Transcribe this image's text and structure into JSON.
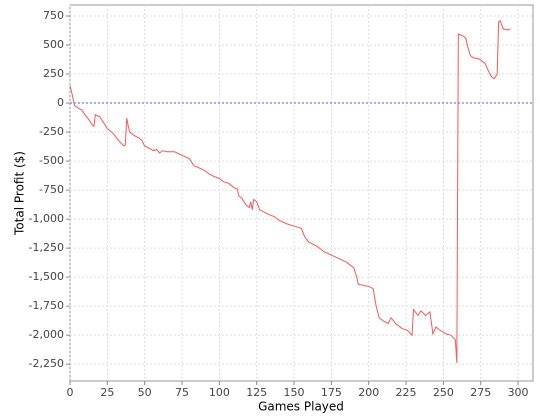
{
  "chart_data": {
    "type": "line",
    "x_label": "Games Played",
    "y_label": "Total Profit ($)",
    "xlim": [
      0,
      310
    ],
    "ylim": [
      -2395,
      845
    ],
    "xticks": [
      0,
      25,
      50,
      75,
      100,
      125,
      150,
      175,
      200,
      225,
      250,
      275,
      300
    ],
    "yticks": [
      750,
      500,
      250,
      0,
      -250,
      -500,
      -750,
      {
        "value": -1000,
        "label": "-1,000"
      },
      {
        "value": -1250,
        "label": "-1,250"
      },
      {
        "value": -1500,
        "label": "-1,500"
      },
      {
        "value": -1750,
        "label": "-1,750"
      },
      {
        "value": -2000,
        "label": "-2,000"
      },
      {
        "value": -2250,
        "label": "-2,250"
      }
    ],
    "grid": true,
    "zero_line": true,
    "series": [
      {
        "color": "#ff5555",
        "x": [
          0,
          1,
          3,
          5,
          8,
          10,
          13,
          15,
          16,
          17,
          20,
          23,
          25,
          28,
          30,
          33,
          36,
          37,
          38,
          39,
          40,
          43,
          46,
          48,
          50,
          53,
          56,
          58,
          60,
          62,
          65,
          70,
          75,
          80,
          83,
          85,
          90,
          93,
          96,
          100,
          103,
          106,
          110,
          112,
          113,
          115,
          118,
          120,
          121,
          122,
          123,
          125,
          127,
          130,
          133,
          137,
          140,
          145,
          150,
          155,
          157,
          160,
          165,
          170,
          175,
          180,
          185,
          190,
          192,
          193,
          196,
          200,
          203,
          205,
          207,
          210,
          213,
          215,
          218,
          222,
          226,
          229,
          230,
          233,
          235,
          238,
          241,
          243,
          245,
          248,
          252,
          255,
          258,
          259,
          260,
          263,
          265,
          266,
          268,
          270,
          274,
          278,
          280,
          282,
          284,
          286,
          287,
          288,
          290,
          293,
          295
        ],
        "values": [
          150,
          100,
          -20,
          -40,
          -60,
          -100,
          -150,
          -190,
          -200,
          -100,
          -120,
          -180,
          -220,
          -250,
          -280,
          -330,
          -370,
          -360,
          -130,
          -200,
          -250,
          -280,
          -300,
          -320,
          -370,
          -390,
          -410,
          -400,
          -430,
          -410,
          -420,
          -420,
          -450,
          -480,
          -540,
          -550,
          -580,
          -610,
          -630,
          -650,
          -680,
          -690,
          -730,
          -740,
          -800,
          -820,
          -880,
          -900,
          -850,
          -920,
          -830,
          -850,
          -920,
          -940,
          -960,
          -980,
          -1010,
          -1040,
          -1060,
          -1080,
          -1150,
          -1200,
          -1230,
          -1280,
          -1310,
          -1340,
          -1370,
          -1420,
          -1500,
          -1560,
          -1570,
          -1580,
          -1600,
          -1750,
          -1850,
          -1880,
          -1900,
          -1850,
          -1900,
          -1940,
          -1960,
          -2000,
          -1780,
          -1830,
          -1790,
          -1830,
          -1800,
          -1990,
          -1930,
          -1960,
          -1990,
          -2000,
          -2040,
          -2240,
          595,
          580,
          560,
          500,
          410,
          390,
          380,
          340,
          280,
          230,
          210,
          250,
          700,
          710,
          640,
          630,
          640
        ]
      }
    ]
  }
}
